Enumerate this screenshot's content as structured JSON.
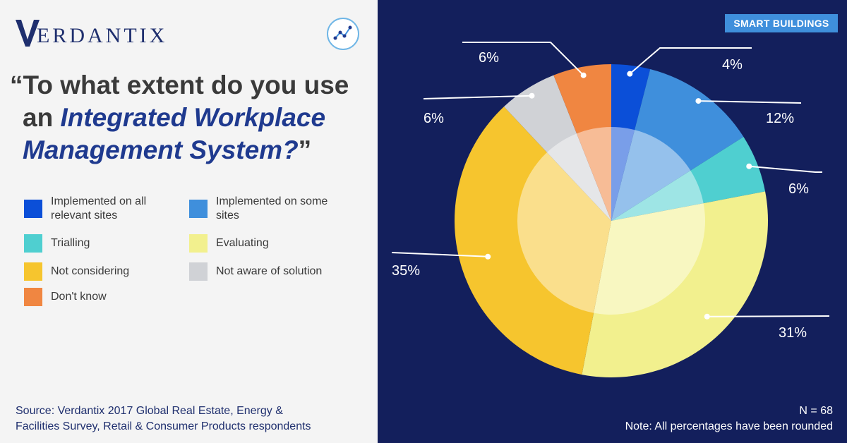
{
  "brand": {
    "logo_letter": "V",
    "logo_text": "ERDANTIX"
  },
  "tag": "SMART BUILDINGS",
  "question": {
    "line1": "“To what extent do you use",
    "line2_plain": "an ",
    "line2_em": "Integrated Workplace",
    "line3_em": "Management System?",
    "line3_close": "”"
  },
  "legend": [
    {
      "label": "Implemented on all relevant sites",
      "color": "#0b4fd8"
    },
    {
      "label": "Implemented on some sites",
      "color": "#3f8fdc"
    },
    {
      "label": "Trialling",
      "color": "#4fcfd0"
    },
    {
      "label": "Evaluating",
      "color": "#f2f08e"
    },
    {
      "label": "Not considering",
      "color": "#f6c52e"
    },
    {
      "label": "Not aware of solution",
      "color": "#d0d2d6"
    },
    {
      "label": "Don't know",
      "color": "#f08641"
    }
  ],
  "source": {
    "line1": "Source: Verdantix 2017 Global Real Estate, Energy &",
    "line2": "Facilities Survey, Retail & Consumer Products respondents"
  },
  "footnote": {
    "n": "N = 68",
    "note": "Note: All percentages have been rounded"
  },
  "chart_data": {
    "type": "pie",
    "categories": [
      "Implemented on all relevant sites",
      "Implemented on some sites",
      "Trialling",
      "Evaluating",
      "Not considering",
      "Not aware of solution",
      "Don't know"
    ],
    "values": [
      4,
      12,
      6,
      31,
      35,
      6,
      6
    ],
    "labels": [
      "4%",
      "12%",
      "6%",
      "31%",
      "35%",
      "6%",
      "6%"
    ],
    "colors": [
      "#0b4fd8",
      "#3f8fdc",
      "#4fcfd0",
      "#f2f08e",
      "#f6c52e",
      "#d0d2d6",
      "#f08641"
    ],
    "start": "12 o'clock",
    "direction": "clockwise"
  }
}
